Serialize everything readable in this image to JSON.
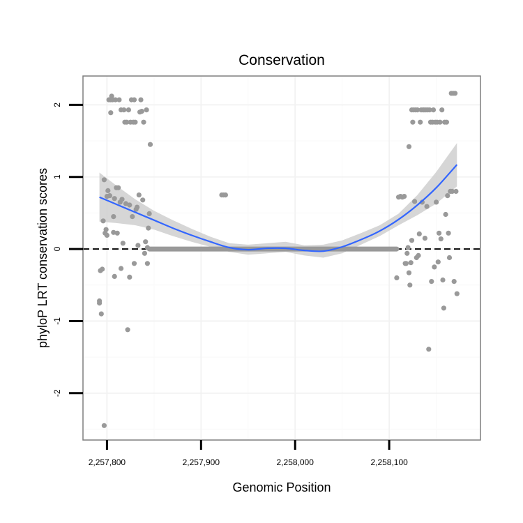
{
  "chart_data": {
    "type": "scatter",
    "title": "Conservation",
    "xlabel": "Genomic Position",
    "ylabel": "phyloP LRT conservation scores",
    "xlim": [
      2257774.5,
      2258197
    ],
    "ylim": [
      -2.65,
      2.4
    ],
    "grid": true,
    "x_ticks": [
      {
        "value": 2257800,
        "label": "2,257,800"
      },
      {
        "value": 2257900,
        "label": "2,257,900"
      },
      {
        "value": 2258000,
        "label": "2,258,000"
      },
      {
        "value": 2258100,
        "label": "2,258,100"
      }
    ],
    "y_ticks": [
      {
        "value": -2,
        "label": "-2"
      },
      {
        "value": -1,
        "label": "-1"
      },
      {
        "value": 0,
        "label": "0"
      },
      {
        "value": 1,
        "label": "1"
      },
      {
        "value": 2,
        "label": "2"
      }
    ],
    "reference_line": {
      "y": 0,
      "style": "dashed",
      "color": "#000000"
    },
    "point_color": "#999999",
    "smooth_color": "#3366ff",
    "band_color": "#cccccc",
    "points": [
      [
        2257792,
        -0.75
      ],
      [
        2257792,
        -0.72
      ],
      [
        2257793,
        -0.3
      ],
      [
        2257794,
        -0.9
      ],
      [
        2257795,
        -0.28
      ],
      [
        2257796,
        0.39
      ],
      [
        2257797,
        0.96
      ],
      [
        2257797,
        -2.45
      ],
      [
        2257798,
        0.22
      ],
      [
        2257799,
        0.27
      ],
      [
        2257800,
        0.19
      ],
      [
        2257800,
        0.73
      ],
      [
        2257801,
        0.81
      ],
      [
        2257802,
        2.07
      ],
      [
        2257803,
        0.74
      ],
      [
        2257804,
        2.07
      ],
      [
        2257804,
        1.89
      ],
      [
        2257805,
        2.12
      ],
      [
        2257806,
        2.07
      ],
      [
        2257807,
        0.45
      ],
      [
        2257807,
        0.23
      ],
      [
        2257808,
        -0.38
      ],
      [
        2257808,
        0.7
      ],
      [
        2257809,
        2.07
      ],
      [
        2257810,
        0.85
      ],
      [
        2257811,
        0.22
      ],
      [
        2257812,
        0.85
      ],
      [
        2257813,
        2.07
      ],
      [
        2257814,
        0.65
      ],
      [
        2257815,
        1.93
      ],
      [
        2257815,
        -0.27
      ],
      [
        2257816,
        0.69
      ],
      [
        2257817,
        0.08
      ],
      [
        2257818,
        1.93
      ],
      [
        2257819,
        1.76
      ],
      [
        2257820,
        0.63
      ],
      [
        2257821,
        1.76
      ],
      [
        2257822,
        -1.12
      ],
      [
        2257823,
        1.93
      ],
      [
        2257824,
        0.61
      ],
      [
        2257824,
        -0.39
      ],
      [
        2257825,
        1.76
      ],
      [
        2257826,
        2.07
      ],
      [
        2257827,
        0.45
      ],
      [
        2257828,
        1.76
      ],
      [
        2257829,
        2.07
      ],
      [
        2257829,
        -0.2
      ],
      [
        2257830,
        1.76
      ],
      [
        2257831,
        0.55
      ],
      [
        2257832,
        0.58
      ],
      [
        2257833,
        0.05
      ],
      [
        2257834,
        0.75
      ],
      [
        2257835,
        1.9
      ],
      [
        2257836,
        2.07
      ],
      [
        2257837,
        1.91
      ],
      [
        2257838,
        0.68
      ],
      [
        2257839,
        1.76
      ],
      [
        2257840,
        -0.06
      ],
      [
        2257841,
        0.1
      ],
      [
        2257842,
        1.93
      ],
      [
        2257843,
        0.02
      ],
      [
        2257843,
        -0.2
      ],
      [
        2257844,
        0.29
      ],
      [
        2257845,
        0.49
      ],
      [
        2257846,
        1.45
      ],
      [
        2257922,
        0.75
      ],
      [
        2257924,
        0.75
      ],
      [
        2257926,
        0.75
      ],
      [
        2258108,
        -0.4
      ],
      [
        2258110,
        0.72
      ],
      [
        2258112,
        0.73
      ],
      [
        2258114,
        0.72
      ],
      [
        2258116,
        0.73
      ],
      [
        2258117,
        -0.2
      ],
      [
        2258118,
        -0.2
      ],
      [
        2258119,
        -0.06
      ],
      [
        2258120,
        0.02
      ],
      [
        2258121,
        1.42
      ],
      [
        2258121,
        -0.33
      ],
      [
        2258122,
        -0.5
      ],
      [
        2258123,
        -0.19
      ],
      [
        2258124,
        1.93
      ],
      [
        2258124,
        0.12
      ],
      [
        2258125,
        1.76
      ],
      [
        2258126,
        1.93
      ],
      [
        2258127,
        0.66
      ],
      [
        2258128,
        1.93
      ],
      [
        2258129,
        -0.12
      ],
      [
        2258130,
        1.93
      ],
      [
        2258131,
        -0.09
      ],
      [
        2258132,
        0.21
      ],
      [
        2258133,
        1.76
      ],
      [
        2258134,
        1.93
      ],
      [
        2258135,
        0.65
      ],
      [
        2258136,
        1.93
      ],
      [
        2258137,
        1.93
      ],
      [
        2258138,
        0.15
      ],
      [
        2258139,
        1.93
      ],
      [
        2258140,
        0.59
      ],
      [
        2258141,
        1.93
      ],
      [
        2258142,
        -1.39
      ],
      [
        2258143,
        1.93
      ],
      [
        2258144,
        1.76
      ],
      [
        2258145,
        -0.45
      ],
      [
        2258146,
        1.76
      ],
      [
        2258147,
        1.93
      ],
      [
        2258148,
        -0.25
      ],
      [
        2258149,
        1.76
      ],
      [
        2258150,
        0.65
      ],
      [
        2258151,
        1.76
      ],
      [
        2258152,
        -0.18
      ],
      [
        2258153,
        0.22
      ],
      [
        2258154,
        1.76
      ],
      [
        2258155,
        0.14
      ],
      [
        2258156,
        1.93
      ],
      [
        2258157,
        -0.43
      ],
      [
        2258158,
        -0.82
      ],
      [
        2258159,
        1.76
      ],
      [
        2258160,
        0.48
      ],
      [
        2258161,
        1.76
      ],
      [
        2258162,
        0.74
      ],
      [
        2258163,
        0.22
      ],
      [
        2258164,
        -0.12
      ],
      [
        2258165,
        0.8
      ],
      [
        2258166,
        2.16
      ],
      [
        2258167,
        0.8
      ],
      [
        2258168,
        2.16
      ],
      [
        2258169,
        -0.45
      ],
      [
        2258170,
        2.16
      ],
      [
        2258171,
        0.8
      ],
      [
        2258172,
        -0.62
      ]
    ],
    "zero_segments": [
      [
        2257845,
        2258108
      ]
    ],
    "smooth": {
      "x": [
        2257792,
        2257810,
        2257830,
        2257850,
        2257870,
        2257890,
        2257910,
        2257930,
        2257950,
        2257970,
        2257990,
        2258010,
        2258030,
        2258050,
        2258070,
        2258090,
        2258110,
        2258130,
        2258150,
        2258172
      ],
      "y": [
        0.72,
        0.62,
        0.51,
        0.4,
        0.29,
        0.19,
        0.1,
        0.02,
        -0.01,
        0.01,
        0.01,
        -0.02,
        -0.03,
        0.03,
        0.13,
        0.25,
        0.41,
        0.61,
        0.85,
        1.17
      ],
      "lower": [
        0.38,
        0.36,
        0.33,
        0.27,
        0.18,
        0.1,
        0.03,
        -0.04,
        -0.08,
        -0.06,
        -0.04,
        -0.09,
        -0.12,
        -0.06,
        0.06,
        0.18,
        0.33,
        0.47,
        0.63,
        0.87
      ],
      "upper": [
        1.06,
        0.88,
        0.69,
        0.53,
        0.4,
        0.28,
        0.17,
        0.08,
        0.06,
        0.08,
        0.1,
        0.05,
        0.06,
        0.12,
        0.22,
        0.33,
        0.49,
        0.75,
        1.07,
        1.47
      ]
    }
  }
}
